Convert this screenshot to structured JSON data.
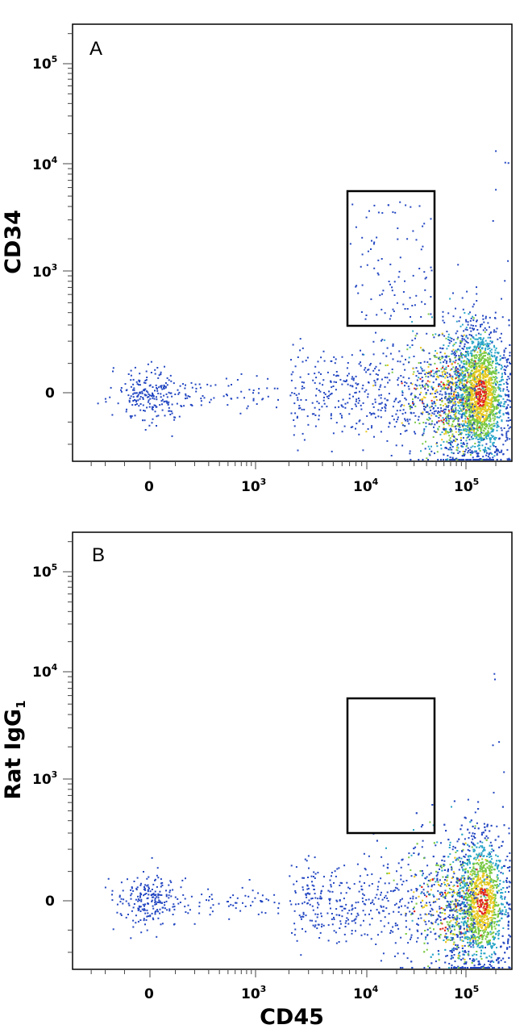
{
  "chart_data": [
    {
      "type": "scatter",
      "subtype": "flow-cytometry density dot plot",
      "panel_label": "A",
      "xlabel": "",
      "ylabel": "CD34",
      "x_scale": "biexponential",
      "y_scale": "biexponential",
      "x_tick_labels": [
        {
          "value": 0,
          "label": "0",
          "base": "0",
          "exp": ""
        },
        {
          "value": 1000,
          "label": "10^3",
          "base": "10",
          "exp": "3"
        },
        {
          "value": 10000,
          "label": "10^4",
          "base": "10",
          "exp": "4"
        },
        {
          "value": 100000,
          "label": "10^5",
          "base": "10",
          "exp": "5"
        }
      ],
      "y_tick_labels": [
        {
          "value": 0,
          "label": "0",
          "base": "0",
          "exp": ""
        },
        {
          "value": 1000,
          "label": "10^3",
          "base": "10",
          "exp": "3"
        },
        {
          "value": 10000,
          "label": "10^4",
          "base": "10",
          "exp": "4"
        },
        {
          "value": 100000,
          "label": "10^5",
          "base": "10",
          "exp": "5"
        }
      ],
      "gate": {
        "x_range": [
          7000,
          45000
        ],
        "y_range": [
          350,
          5500
        ]
      },
      "populations": [
        {
          "name": "CD45-high main population",
          "x_center": 140000,
          "y_center": 0,
          "relative_density": "very high"
        },
        {
          "name": "CD45+ CD34+ gated events",
          "x_range": [
            7000,
            45000
          ],
          "y_range": [
            350,
            4500
          ],
          "relative_density": "sparse"
        },
        {
          "name": "CD45-negative events",
          "x_center": 0,
          "y_center": 0,
          "relative_density": "sparse"
        }
      ],
      "grid": false,
      "legend": "none"
    },
    {
      "type": "scatter",
      "subtype": "flow-cytometry density dot plot",
      "panel_label": "B",
      "xlabel": "CD45",
      "ylabel": "Rat IgG",
      "ylabel_subscript": "1",
      "x_scale": "biexponential",
      "y_scale": "biexponential",
      "x_tick_labels": [
        {
          "value": 0,
          "label": "0",
          "base": "0",
          "exp": ""
        },
        {
          "value": 1000,
          "label": "10^3",
          "base": "10",
          "exp": "3"
        },
        {
          "value": 10000,
          "label": "10^4",
          "base": "10",
          "exp": "4"
        },
        {
          "value": 100000,
          "label": "10^5",
          "base": "10",
          "exp": "5"
        }
      ],
      "y_tick_labels": [
        {
          "value": 0,
          "label": "0",
          "base": "0",
          "exp": ""
        },
        {
          "value": 1000,
          "label": "10^3",
          "base": "10",
          "exp": "3"
        },
        {
          "value": 10000,
          "label": "10^4",
          "base": "10",
          "exp": "4"
        },
        {
          "value": 100000,
          "label": "10^5",
          "base": "10",
          "exp": "5"
        }
      ],
      "gate": {
        "x_range": [
          7000,
          45000
        ],
        "y_range": [
          350,
          5500
        ]
      },
      "populations": [
        {
          "name": "CD45-high main population",
          "x_center": 145000,
          "y_center": 0,
          "relative_density": "very high"
        },
        {
          "name": "CD45-negative events",
          "x_center": 0,
          "y_center": 0,
          "relative_density": "sparse"
        }
      ],
      "grid": false,
      "legend": "none"
    }
  ],
  "colors": {
    "dot_low": "#2347c2",
    "dot_mid": "#2aa6c8",
    "dot_high": "#7ac943",
    "dot_higher": "#e8c81e",
    "dot_peak": "#e2221c",
    "frame": "#000000",
    "tick_marks": "#888888"
  }
}
